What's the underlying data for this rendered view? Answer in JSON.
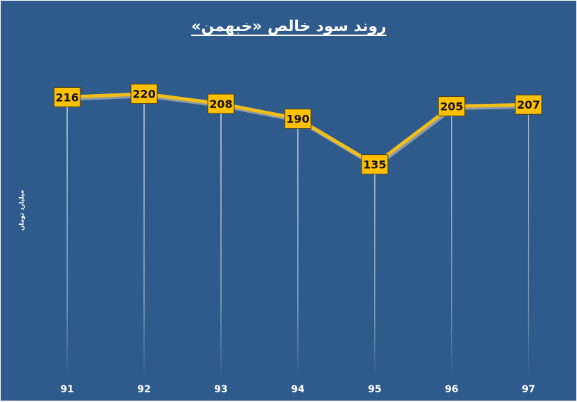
{
  "chart_data": {
    "type": "line",
    "title": "روند سود خالص «خبهمن»",
    "ylabel": "میلیارد تومان",
    "xlabel": "",
    "categories": [
      "91",
      "92",
      "93",
      "94",
      "95",
      "96",
      "97"
    ],
    "series": [
      {
        "values": [
          216,
          220,
          208,
          190,
          135,
          205,
          207
        ]
      }
    ],
    "ylim": [
      0,
      260
    ],
    "grid": false,
    "data_labels": true,
    "colors": {
      "background": "#2e5b8b",
      "line": "#f2bf1a",
      "line_shadow": "#8a9aa6",
      "label_box": "#ffc000",
      "label_border": "#4a3f1a",
      "drop_line": "#ffffff",
      "text": "#ffffff"
    }
  }
}
